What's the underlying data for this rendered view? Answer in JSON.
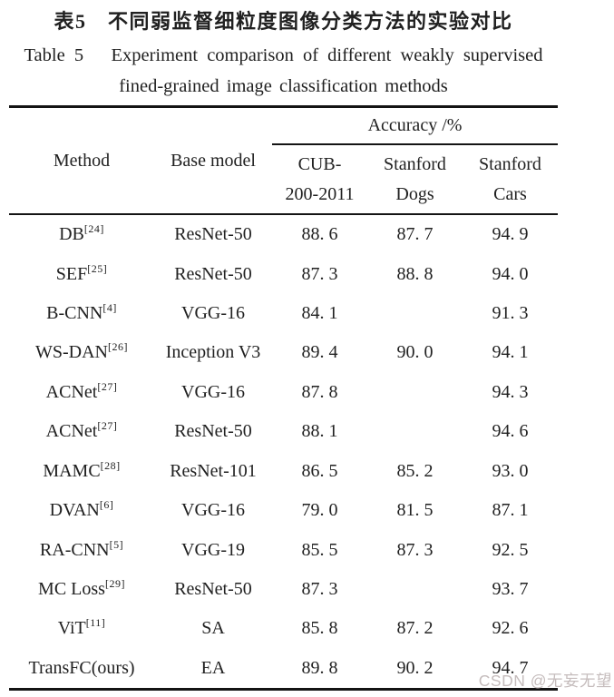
{
  "title": {
    "zh": "表5　不同弱监督细粒度图像分类方法的实验对比",
    "en_line1": "Table 5   Experiment comparison of different weakly supervised",
    "en_line2": "fined-grained image classification methods"
  },
  "table": {
    "header": {
      "method": "Method",
      "base_model": "Base model",
      "accuracy_group": "Accuracy /%",
      "subcolumns": [
        {
          "line1": "CUB-",
          "line2": "200-2011"
        },
        {
          "line1": "Stanford",
          "line2": "Dogs"
        },
        {
          "line1": "Stanford",
          "line2": "Cars"
        }
      ]
    },
    "rows": [
      {
        "method": "DB",
        "ref": "[24]",
        "base_model": "ResNet-50",
        "cub_200_2011": "88. 6",
        "stanford_dogs": "87. 7",
        "stanford_cars": "94. 9"
      },
      {
        "method": "SEF",
        "ref": "[25]",
        "base_model": "ResNet-50",
        "cub_200_2011": "87. 3",
        "stanford_dogs": "88. 8",
        "stanford_cars": "94. 0"
      },
      {
        "method": "B-CNN",
        "ref": "[4]",
        "base_model": "VGG-16",
        "cub_200_2011": "84. 1",
        "stanford_dogs": "",
        "stanford_cars": "91. 3"
      },
      {
        "method": "WS-DAN",
        "ref": "[26]",
        "base_model": "Inception V3",
        "cub_200_2011": "89. 4",
        "stanford_dogs": "90. 0",
        "stanford_cars": "94. 1"
      },
      {
        "method": "ACNet",
        "ref": "[27]",
        "base_model": "VGG-16",
        "cub_200_2011": "87. 8",
        "stanford_dogs": "",
        "stanford_cars": "94. 3"
      },
      {
        "method": "ACNet",
        "ref": "[27]",
        "base_model": "ResNet-50",
        "cub_200_2011": "88. 1",
        "stanford_dogs": "",
        "stanford_cars": "94. 6"
      },
      {
        "method": "MAMC",
        "ref": "[28]",
        "base_model": "ResNet-101",
        "cub_200_2011": "86. 5",
        "stanford_dogs": "85. 2",
        "stanford_cars": "93. 0"
      },
      {
        "method": "DVAN",
        "ref": "[6]",
        "base_model": "VGG-16",
        "cub_200_2011": "79. 0",
        "stanford_dogs": "81. 5",
        "stanford_cars": "87. 1"
      },
      {
        "method": "RA-CNN",
        "ref": "[5]",
        "base_model": "VGG-19",
        "cub_200_2011": "85. 5",
        "stanford_dogs": "87. 3",
        "stanford_cars": "92. 5"
      },
      {
        "method": "MC Loss",
        "ref": "[29]",
        "base_model": "ResNet-50",
        "cub_200_2011": "87. 3",
        "stanford_dogs": "",
        "stanford_cars": "93. 7"
      },
      {
        "method": "ViT",
        "ref": "[11]",
        "base_model": "SA",
        "cub_200_2011": "85. 8",
        "stanford_dogs": "87. 2",
        "stanford_cars": "92. 6"
      },
      {
        "method": "TransFC(ours)",
        "ref": "",
        "base_model": "EA",
        "cub_200_2011": "89. 8",
        "stanford_dogs": "90. 2",
        "stanford_cars": "94. 7"
      }
    ]
  },
  "watermark": "CSDN @无妄无望",
  "colors": {
    "background": "#ffffff",
    "text": "#212121",
    "rule": "#141414",
    "watermark": "#c5bcbc"
  }
}
